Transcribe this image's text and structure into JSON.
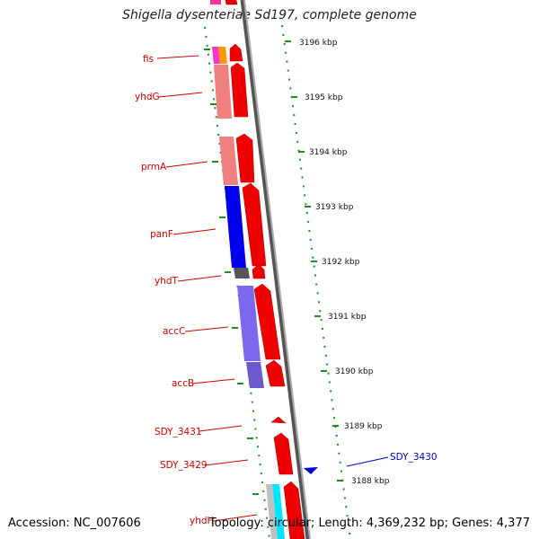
{
  "title": "Shigella dysenteriae Sd197, complete genome",
  "footer": {
    "accession": "Accession: NC_007606",
    "topology": "Topology: circular; Length: 4,369,232 bp; Genes: 4,377"
  },
  "scale_labels": [
    "3196 kbp",
    "3195 kbp",
    "3194 kbp",
    "3193 kbp",
    "3192 kbp",
    "3191 kbp",
    "3190 kbp",
    "3189 kbp",
    "3188 kbp"
  ],
  "gene_labels": [
    "fis",
    "yhdG",
    "prmA",
    "panF",
    "yhdT",
    "accC",
    "accB",
    "SDY_3431",
    "SDY_3429",
    "SDY_3430",
    "yhdH"
  ],
  "colors": {
    "label_red": "#cc0000",
    "label_blue": "#0000cc",
    "arrow_red": "#ee0000",
    "scale_green": "#228b22",
    "backbone": "#808080"
  }
}
